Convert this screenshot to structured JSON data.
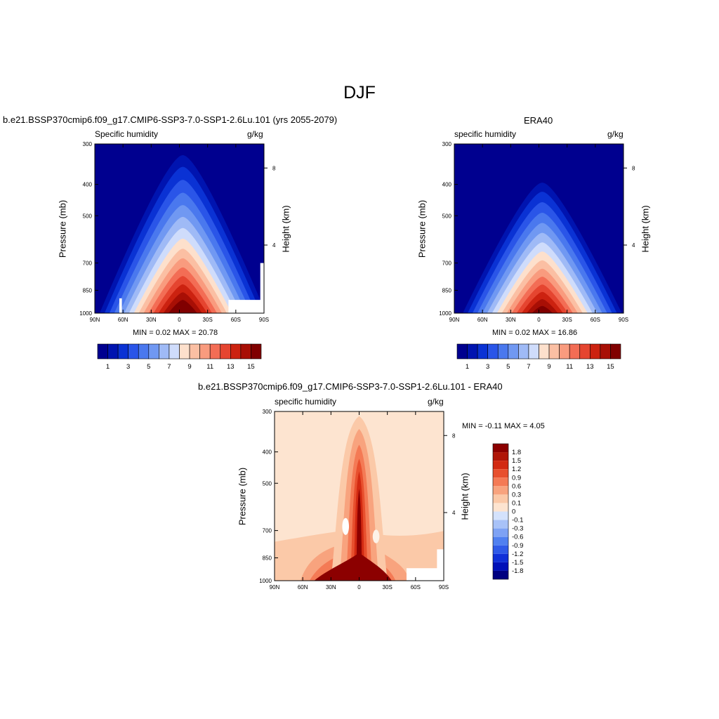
{
  "main_title": "DJF",
  "colors": {
    "blues_to_reds": [
      "#00008f",
      "#0014b0",
      "#0a32d4",
      "#2a55e8",
      "#4a78ee",
      "#7098f2",
      "#9fbaf6",
      "#cfdcfb",
      "#fde0cc",
      "#fbbfa3",
      "#f99b7e",
      "#f36d55",
      "#e54530",
      "#cc2210",
      "#a80f05",
      "#800000"
    ],
    "diff_scale": [
      "#000080",
      "#0010b8",
      "#1030d8",
      "#2f5ae8",
      "#5080f0",
      "#7ea2f4",
      "#a8c2f8",
      "#d4e2fc",
      "#fde4d0",
      "#fbc9a8",
      "#f8a37e",
      "#f47a55",
      "#e8502e",
      "#d22a12",
      "#b01608",
      "#8c0000"
    ]
  },
  "panels": {
    "model": {
      "title": "b.e21.BSSP370cmip6.f09_g17.CMIP6-SSP3-7.0-SSP1-2.6Lu.101 (yrs 2055-2079)",
      "left_label": "Specific humidity",
      "right_label": "g/kg",
      "ylabel": "Pressure (mb)",
      "ylabel_right": "Height (km)",
      "minmax": "MIN =   0.02  MAX =  20.78",
      "cb_labels": [
        "1",
        "3",
        "5",
        "7",
        "9",
        "11",
        "13",
        "15"
      ]
    },
    "obs": {
      "title": "ERA40",
      "left_label": "specific humidity",
      "right_label": "g/kg",
      "ylabel": "Pressure (mb)",
      "ylabel_right": "Height (km)",
      "minmax": "MIN =   0.02  MAX =  16.86",
      "cb_labels": [
        "1",
        "3",
        "5",
        "7",
        "9",
        "11",
        "13",
        "15"
      ]
    },
    "diff": {
      "title": "b.e21.BSSP370cmip6.f09_g17.CMIP6-SSP3-7.0-SSP1-2.6Lu.101 - ERA40",
      "left_label": "specific humidity",
      "right_label": "g/kg",
      "ylabel": "Pressure (mb)",
      "ylabel_right": "Height (km)",
      "minmax": "MIN =  -0.11  MAX =   4.05",
      "cb_labels": [
        "1.8",
        "1.5",
        "1.2",
        "0.9",
        "0.6",
        "0.3",
        "0.1",
        "0",
        "-0.1",
        "-0.3",
        "-0.6",
        "-0.9",
        "-1.2",
        "-1.5",
        "-1.8"
      ]
    }
  },
  "axes": {
    "x_ticks": [
      "90N",
      "60N",
      "30N",
      "0",
      "30S",
      "60S",
      "90S"
    ],
    "y_ticks": [
      "300",
      "400",
      "500",
      "700",
      "850",
      "1000"
    ],
    "height_ticks": [
      "8",
      "4"
    ]
  },
  "chart_data": [
    {
      "type": "heatmap",
      "name": "model",
      "title": "b.e21.BSSP370cmip6.f09_g17.CMIP6-SSP3-7.0-SSP1-2.6Lu.101 (yrs 2055-2079)",
      "field": "Specific humidity",
      "units": "g/kg",
      "xlabel": "",
      "ylabel": "Pressure (mb)",
      "x_ticks": [
        "90N",
        "60N",
        "30N",
        "0",
        "30S",
        "60S",
        "90S"
      ],
      "x_range": [
        90,
        -90
      ],
      "y_ticks": [
        300,
        400,
        500,
        700,
        850,
        1000
      ],
      "y_range": [
        1000,
        300
      ],
      "levels": [
        1,
        2,
        3,
        4,
        5,
        6,
        7,
        8,
        9,
        10,
        11,
        12,
        13,
        14,
        15
      ],
      "min": 0.02,
      "max": 20.78,
      "tropical_peak_lat": -2,
      "tropical_peak_value": 20.78,
      "contour_top_levels_mb": {
        "1": 325,
        "15": 910
      },
      "colorbar_labels": [
        1,
        3,
        5,
        7,
        9,
        11,
        13,
        15
      ]
    },
    {
      "type": "heatmap",
      "name": "obs",
      "title": "ERA40",
      "field": "specific humidity",
      "units": "g/kg",
      "xlabel": "",
      "ylabel": "Pressure (mb)",
      "x_ticks": [
        "90N",
        "60N",
        "30N",
        "0",
        "30S",
        "60S",
        "90S"
      ],
      "x_range": [
        90,
        -90
      ],
      "y_ticks": [
        300,
        400,
        500,
        700,
        850,
        1000
      ],
      "y_range": [
        1000,
        300
      ],
      "levels": [
        1,
        2,
        3,
        4,
        5,
        6,
        7,
        8,
        9,
        10,
        11,
        12,
        13,
        14,
        15
      ],
      "min": 0.02,
      "max": 16.86,
      "tropical_peak_lat": -2,
      "tropical_peak_value": 16.86,
      "contour_top_levels_mb": {
        "1": 395,
        "15": 950
      },
      "colorbar_labels": [
        1,
        3,
        5,
        7,
        9,
        11,
        13,
        15
      ]
    },
    {
      "type": "heatmap",
      "name": "difference",
      "title": "b.e21.BSSP370cmip6.f09_g17.CMIP6-SSP3-7.0-SSP1-2.6Lu.101 - ERA40",
      "field": "specific humidity",
      "units": "g/kg",
      "xlabel": "",
      "ylabel": "Pressure (mb)",
      "x_ticks": [
        "90N",
        "60N",
        "30N",
        "0",
        "30S",
        "60S",
        "90S"
      ],
      "x_range": [
        90,
        -90
      ],
      "y_ticks": [
        300,
        400,
        500,
        700,
        850,
        1000
      ],
      "y_range": [
        1000,
        300
      ],
      "levels": [
        -1.8,
        -1.5,
        -1.2,
        -0.9,
        -0.6,
        -0.3,
        -0.1,
        0,
        0.1,
        0.3,
        0.6,
        0.9,
        1.2,
        1.5,
        1.8
      ],
      "min": -0.11,
      "max": 4.05,
      "colorbar_labels": [
        1.8,
        1.5,
        1.2,
        0.9,
        0.6,
        0.3,
        0.1,
        0,
        -0.1,
        -0.3,
        -0.6,
        -0.9,
        -1.2,
        -1.5,
        -1.8
      ]
    }
  ]
}
